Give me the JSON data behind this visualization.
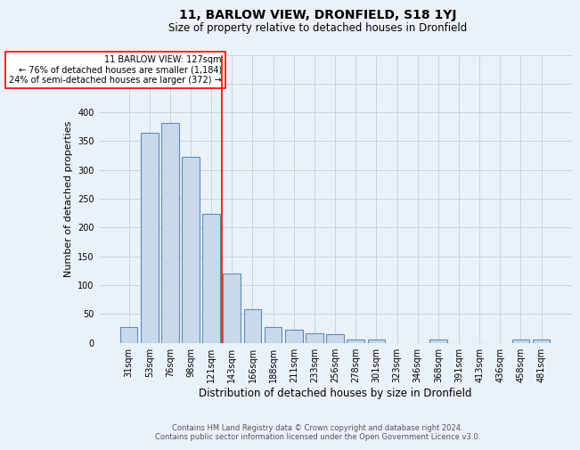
{
  "title": "11, BARLOW VIEW, DRONFIELD, S18 1YJ",
  "subtitle": "Size of property relative to detached houses in Dronfield",
  "xlabel": "Distribution of detached houses by size in Dronfield",
  "ylabel": "Number of detached properties",
  "categories": [
    "31sqm",
    "53sqm",
    "76sqm",
    "98sqm",
    "121sqm",
    "143sqm",
    "166sqm",
    "188sqm",
    "211sqm",
    "233sqm",
    "256sqm",
    "278sqm",
    "301sqm",
    "323sqm",
    "346sqm",
    "368sqm",
    "391sqm",
    "413sqm",
    "436sqm",
    "458sqm",
    "481sqm"
  ],
  "values": [
    27,
    365,
    382,
    323,
    224,
    120,
    58,
    27,
    22,
    17,
    15,
    6,
    5,
    0,
    0,
    5,
    0,
    0,
    0,
    5,
    5
  ],
  "bar_color": "#c9d9eb",
  "bar_edge_color": "#5b8db8",
  "grid_color": "#c8d4e0",
  "background_color": "#eaf1f8",
  "red_line_x": 4.5,
  "annotation_text": "11 BARLOW VIEW: 127sqm\n← 76% of detached houses are smaller (1,184)\n24% of semi-detached houses are larger (372) →",
  "annotation_box_color": "white",
  "annotation_box_edge_color": "red",
  "footer": "Contains HM Land Registry data © Crown copyright and database right 2024.\nContains public sector information licensed under the Open Government Licence v3.0.",
  "ylim": [
    0,
    500
  ],
  "yticks": [
    0,
    50,
    100,
    150,
    200,
    250,
    300,
    350,
    400,
    450,
    500
  ],
  "title_fontsize": 10,
  "subtitle_fontsize": 8.5,
  "xlabel_fontsize": 8.5,
  "ylabel_fontsize": 8,
  "tick_fontsize": 7,
  "annotation_fontsize": 7,
  "footer_fontsize": 6
}
